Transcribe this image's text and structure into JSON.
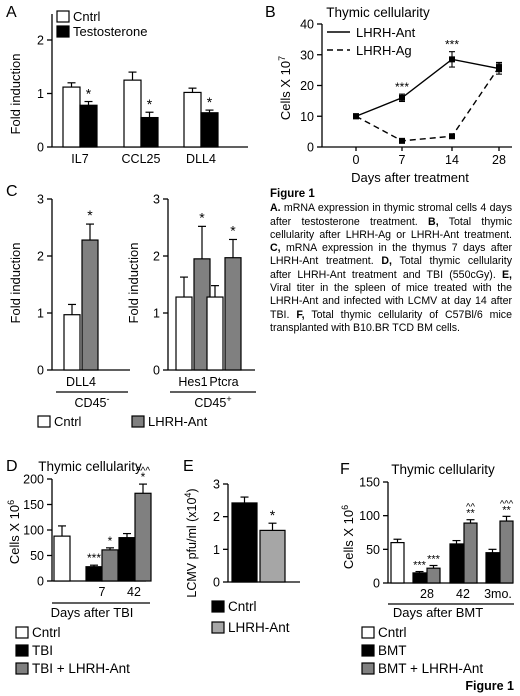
{
  "figure_label": "Figure 1",
  "caption": {
    "title": "Figure 1",
    "items": [
      {
        "letter": "A.",
        "text": " mRNA expression in thymic stromal cells 4 days after testosterone treatment. "
      },
      {
        "letter": "B,",
        "text": " Total thymic cellularity after LHRH-Ag or LHRH-Ant treatment. "
      },
      {
        "letter": "C,",
        "text": " mRNA expression in the thymus 7 days after LHRH-Ant treatment. "
      },
      {
        "letter": "D,",
        "text": " Total thymic cellularity after LHRH-Ant treatment and TBI (550cGy). "
      },
      {
        "letter": "E,",
        "text": " Viral titer in the spleen of mice treated with the LHRH-Ant and infected with LCMV at day 14 after TBI. "
      },
      {
        "letter": "F,",
        "text": " Total thymic cellularity of C57Bl/6 mice transplanted with B10.BR TCD BM cells."
      }
    ]
  },
  "colors": {
    "white": "#ffffff",
    "black": "#000000",
    "gray": "#808080",
    "lightgray": "#a6a6a6"
  },
  "chart_data": [
    {
      "panel": "A",
      "type": "bar",
      "ylabel": "Fold induction",
      "ylim": [
        0,
        2
      ],
      "yticks": [
        "0",
        "1",
        "2"
      ],
      "ytick_values": [
        0,
        1,
        2
      ],
      "categories": [
        "IL7",
        "CCL25",
        "DLL4"
      ],
      "series": [
        {
          "name": "Cntrl",
          "color": "#ffffff",
          "values": [
            1.12,
            1.25,
            1.02
          ],
          "errors": [
            0.08,
            0.15,
            0.08
          ]
        },
        {
          "name": "Testosterone",
          "color": "#000000",
          "values": [
            0.78,
            0.55,
            0.64
          ],
          "errors": [
            0.07,
            0.1,
            0.05
          ]
        }
      ],
      "annotations": [
        {
          "series": 1,
          "index": 0,
          "text": "*"
        },
        {
          "series": 1,
          "index": 1,
          "text": "*"
        },
        {
          "series": 1,
          "index": 2,
          "text": "*"
        }
      ],
      "legend": [
        "Cntrl",
        "Testosterone"
      ],
      "legend_position": "top-left"
    },
    {
      "panel": "B",
      "type": "line",
      "title": "Thymic cellularity",
      "ylabel": "Cells X 10",
      "ylabel_sup": "7",
      "xlabel": "Days after treatment",
      "ylim": [
        0,
        40
      ],
      "yticks": [
        "0",
        "10",
        "20",
        "30",
        "40"
      ],
      "ytick_values": [
        0,
        10,
        20,
        30,
        40
      ],
      "x": [
        0,
        7,
        14,
        28
      ],
      "xticks": [
        "0",
        "7",
        "14",
        "28"
      ],
      "series": [
        {
          "name": "LHRH-Ant",
          "style": "solid",
          "values": [
            10,
            16,
            28.5,
            25.5
          ],
          "errors": [
            0.4,
            1.2,
            2.5,
            1.8
          ]
        },
        {
          "name": "LHRH-Ag",
          "style": "dashed",
          "values": [
            10,
            2,
            3.5,
            26
          ],
          "errors": [
            0.4,
            0.3,
            0.4,
            1.5
          ]
        }
      ],
      "annotations": [
        {
          "series": 0,
          "index": 1,
          "text": "***"
        },
        {
          "series": 0,
          "index": 2,
          "text": "***"
        }
      ],
      "legend": [
        "LHRH-Ant",
        "LHRH-Ag"
      ],
      "legend_position": "top-left"
    },
    {
      "panel": "C",
      "type": "bar",
      "ylabel": "Fold induction",
      "ylim": [
        0,
        3
      ],
      "yticks": [
        "0",
        "1",
        "2",
        "3"
      ],
      "ytick_values": [
        0,
        1,
        2,
        3
      ],
      "groups": [
        {
          "label": "CD45",
          "label_sup": "-",
          "categories": [
            "DLL4"
          ]
        },
        {
          "label": "CD45",
          "label_sup": "+",
          "categories": [
            "Hes1",
            "Ptcra"
          ]
        }
      ],
      "categories": [
        "DLL4",
        "Hes1",
        "Ptcra"
      ],
      "series": [
        {
          "name": "Cntrl",
          "color": "#ffffff",
          "values": [
            0.97,
            1.28,
            1.28
          ],
          "errors": [
            0.18,
            0.35,
            0.2
          ]
        },
        {
          "name": "LHRH-Ant",
          "color": "#808080",
          "values": [
            2.28,
            1.95,
            1.97
          ],
          "errors": [
            0.28,
            0.57,
            0.32
          ]
        }
      ],
      "annotations": [
        {
          "series": 1,
          "index": 0,
          "text": "*"
        },
        {
          "series": 1,
          "index": 1,
          "text": "*"
        },
        {
          "series": 1,
          "index": 2,
          "text": "*"
        }
      ],
      "legend": [
        "Cntrl",
        "LHRH-Ant"
      ],
      "legend_position": "bottom"
    },
    {
      "panel": "D",
      "type": "bar",
      "title": "Thymic cellularity",
      "ylabel": "Cells X 10",
      "ylabel_sup": "6",
      "xlabel": "Days after TBI",
      "ylim": [
        0,
        200
      ],
      "yticks": [
        "0",
        "50",
        "100",
        "150",
        "200"
      ],
      "ytick_values": [
        0,
        50,
        100,
        150,
        200
      ],
      "bars": [
        {
          "series": "Cntrl",
          "color": "#ffffff",
          "value": 88,
          "error": 20
        },
        {
          "series": "TBI",
          "color": "#000000",
          "value": 28,
          "error": 3,
          "label": "***"
        },
        {
          "series": "TBI + LHRH-Ant",
          "color": "#808080",
          "value": 61,
          "error": 4,
          "label": "*"
        },
        {
          "series": "TBI",
          "color": "#000000",
          "value": 85,
          "error": 8
        },
        {
          "series": "TBI + LHRH-Ant",
          "color": "#808080",
          "value": 172,
          "error": 18,
          "label": "*",
          "label2": "^^^"
        }
      ],
      "xticks": [
        "7",
        "42"
      ],
      "legend": [
        "Cntrl",
        "TBI",
        "TBI + LHRH-Ant"
      ],
      "legend_position": "bottom"
    },
    {
      "panel": "E",
      "type": "bar",
      "ylabel": "LCMV pfu/ml (x10",
      "ylabel_sup": "4",
      "ylabel_end": ")",
      "ylim": [
        0,
        3
      ],
      "yticks": [
        "0",
        "1",
        "2",
        "3"
      ],
      "ytick_values": [
        0,
        1,
        2,
        3
      ],
      "bars": [
        {
          "series": "Cntrl",
          "color": "#000000",
          "value": 2.42,
          "error": 0.18
        },
        {
          "series": "LHRH-Ant",
          "color": "#a6a6a6",
          "value": 1.58,
          "error": 0.22,
          "label": "*"
        }
      ],
      "legend": [
        "Cntrl",
        "LHRH-Ant"
      ],
      "legend_position": "bottom"
    },
    {
      "panel": "F",
      "type": "bar",
      "title": "Thymic cellularity",
      "ylabel": "Cells X 10",
      "ylabel_sup": "6",
      "xlabel": "Days after BMT",
      "ylim": [
        0,
        150
      ],
      "yticks": [
        "0",
        "50",
        "100",
        "150"
      ],
      "ytick_values": [
        0,
        50,
        100,
        150
      ],
      "bars": [
        {
          "series": "Cntrl",
          "color": "#ffffff",
          "value": 60,
          "error": 5
        },
        {
          "series": "BMT",
          "color": "#000000",
          "value": 15,
          "error": 2,
          "label": "***"
        },
        {
          "series": "BMT + LHRH-Ant",
          "color": "#808080",
          "value": 22,
          "error": 4,
          "label": "***"
        },
        {
          "series": "BMT",
          "color": "#000000",
          "value": 58,
          "error": 5
        },
        {
          "series": "BMT + LHRH-Ant",
          "color": "#808080",
          "value": 89,
          "error": 5,
          "label": "**",
          "label2": "^^"
        },
        {
          "series": "BMT",
          "color": "#000000",
          "value": 45,
          "error": 5
        },
        {
          "series": "BMT + LHRH-Ant",
          "color": "#808080",
          "value": 92,
          "error": 7,
          "label": "**",
          "label2": "^^^"
        }
      ],
      "xticks": [
        "28",
        "42",
        "3mo."
      ],
      "legend": [
        "Cntrl",
        "BMT",
        "BMT + LHRH-Ant"
      ],
      "legend_position": "bottom"
    }
  ]
}
